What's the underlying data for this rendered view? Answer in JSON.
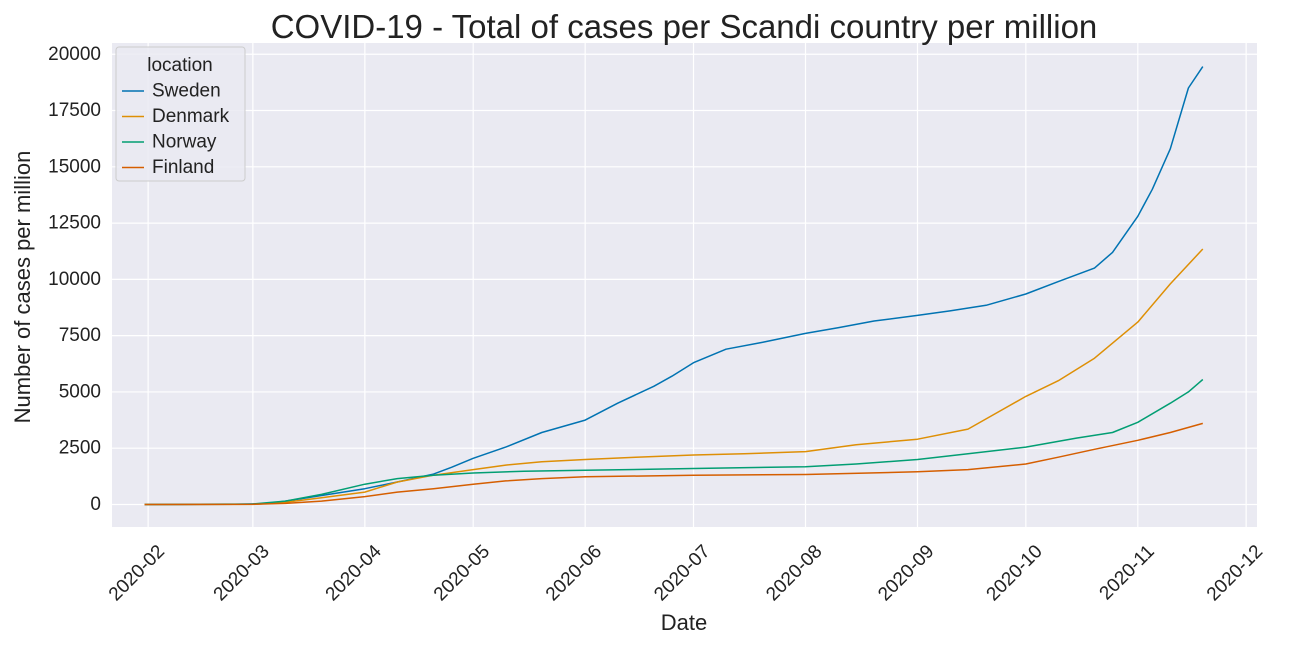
{
  "chart_data": {
    "type": "line",
    "title": "COVID-19 - Total of cases per Scandi country per million",
    "xlabel": "Date",
    "ylabel": "Number of cases per million",
    "x_type": "date",
    "xlim": [
      "2020-01-22",
      "2020-12-04"
    ],
    "ylim": [
      -1000,
      20500
    ],
    "x_ticks": [
      "2020-02",
      "2020-03",
      "2020-04",
      "2020-05",
      "2020-06",
      "2020-07",
      "2020-08",
      "2020-09",
      "2020-10",
      "2020-11",
      "2020-12"
    ],
    "y_ticks": [
      "0",
      "2500",
      "5000",
      "7500",
      "10000",
      "12500",
      "15000",
      "17500",
      "20000"
    ],
    "grid": true,
    "legend": {
      "title": "location",
      "position": "top-left"
    },
    "series": [
      {
        "name": "Sweden",
        "color": "#0173b2",
        "x": [
          "2020-01-31",
          "2020-02-10",
          "2020-02-25",
          "2020-03-05",
          "2020-03-10",
          "2020-03-20",
          "2020-04-01",
          "2020-04-10",
          "2020-04-20",
          "2020-04-25",
          "2020-05-01",
          "2020-05-10",
          "2020-05-20",
          "2020-06-01",
          "2020-06-10",
          "2020-06-20",
          "2020-06-25",
          "2020-07-01",
          "2020-07-10",
          "2020-07-20",
          "2020-08-01",
          "2020-08-10",
          "2020-08-20",
          "2020-09-01",
          "2020-09-10",
          "2020-09-20",
          "2020-10-01",
          "2020-10-10",
          "2020-10-20",
          "2020-10-25",
          "2020-11-01",
          "2020-11-05",
          "2020-11-10",
          "2020-11-15",
          "2020-11-19"
        ],
        "y": [
          0,
          0,
          10,
          40,
          150,
          400,
          700,
          1000,
          1350,
          1650,
          2050,
          2550,
          3200,
          3750,
          4500,
          5250,
          5700,
          6300,
          6900,
          7200,
          7600,
          7850,
          8150,
          8400,
          8600,
          8850,
          9350,
          9900,
          10500,
          11200,
          12800,
          14000,
          15800,
          18500,
          19450
        ]
      },
      {
        "name": "Denmark",
        "color": "#de8f05",
        "x": [
          "2020-01-31",
          "2020-03-01",
          "2020-03-10",
          "2020-03-20",
          "2020-04-01",
          "2020-04-10",
          "2020-04-20",
          "2020-05-01",
          "2020-05-10",
          "2020-05-20",
          "2020-06-01",
          "2020-06-15",
          "2020-07-01",
          "2020-07-15",
          "2020-08-01",
          "2020-08-15",
          "2020-09-01",
          "2020-09-15",
          "2020-09-20",
          "2020-10-01",
          "2020-10-10",
          "2020-10-20",
          "2020-11-01",
          "2020-11-10",
          "2020-11-19"
        ],
        "y": [
          0,
          5,
          100,
          300,
          550,
          1000,
          1300,
          1550,
          1750,
          1900,
          2000,
          2100,
          2200,
          2250,
          2350,
          2650,
          2900,
          3350,
          3800,
          4800,
          5500,
          6500,
          8100,
          9800,
          11350
        ]
      },
      {
        "name": "Norway",
        "color": "#029e73",
        "x": [
          "2020-01-31",
          "2020-03-01",
          "2020-03-10",
          "2020-03-20",
          "2020-04-01",
          "2020-04-10",
          "2020-04-20",
          "2020-05-01",
          "2020-05-15",
          "2020-06-01",
          "2020-07-01",
          "2020-08-01",
          "2020-08-15",
          "2020-09-01",
          "2020-09-15",
          "2020-10-01",
          "2020-10-15",
          "2020-10-25",
          "2020-11-01",
          "2020-11-10",
          "2020-11-15",
          "2020-11-19"
        ],
        "y": [
          0,
          20,
          150,
          450,
          900,
          1150,
          1300,
          1400,
          1480,
          1520,
          1600,
          1680,
          1800,
          2000,
          2250,
          2550,
          2950,
          3200,
          3650,
          4500,
          5000,
          5550
        ]
      },
      {
        "name": "Finland",
        "color": "#d55e00",
        "x": [
          "2020-01-31",
          "2020-03-01",
          "2020-03-10",
          "2020-03-20",
          "2020-04-01",
          "2020-04-10",
          "2020-04-20",
          "2020-05-01",
          "2020-05-10",
          "2020-05-20",
          "2020-06-01",
          "2020-07-01",
          "2020-08-01",
          "2020-09-01",
          "2020-09-15",
          "2020-10-01",
          "2020-10-10",
          "2020-10-20",
          "2020-11-01",
          "2020-11-10",
          "2020-11-19"
        ],
        "y": [
          0,
          10,
          50,
          150,
          350,
          550,
          700,
          900,
          1050,
          1150,
          1230,
          1300,
          1330,
          1450,
          1550,
          1800,
          2100,
          2450,
          2850,
          3200,
          3600
        ]
      }
    ]
  }
}
